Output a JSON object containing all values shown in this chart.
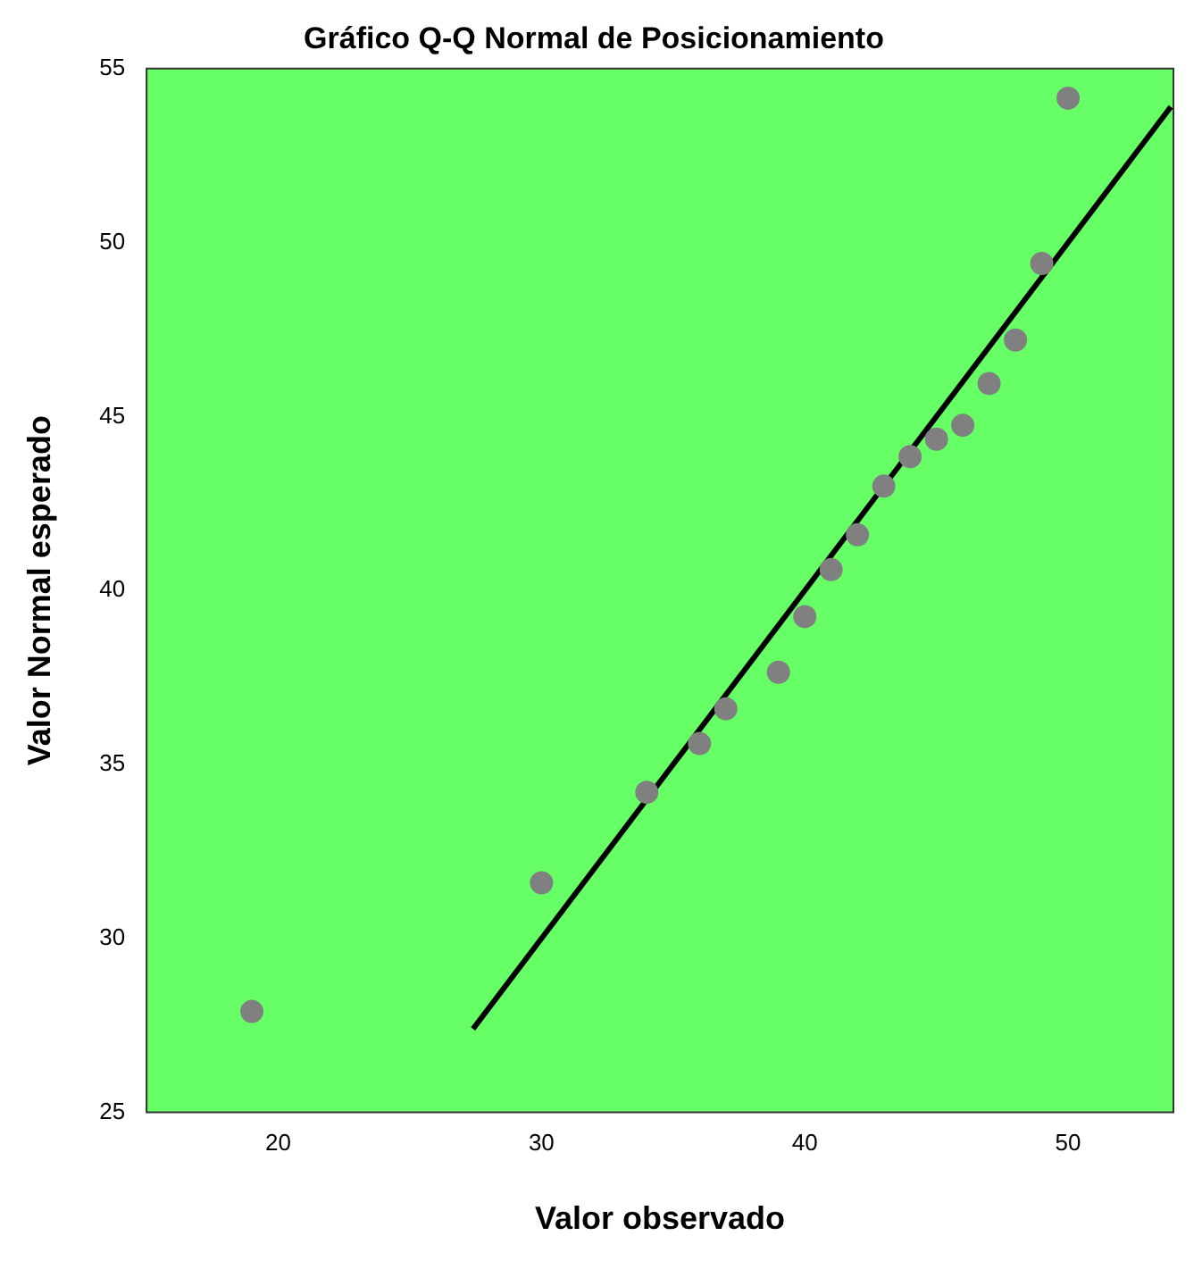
{
  "chart_data": {
    "type": "scatter",
    "title": "Gráfico Q-Q Normal de Posicionamiento",
    "xlabel": "Valor observado",
    "ylabel": "Valor Normal esperado",
    "xlim": [
      15,
      54
    ],
    "xticks": [
      20,
      30,
      40,
      50
    ],
    "ylim": [
      25,
      55
    ],
    "yticks": [
      25,
      30,
      35,
      40,
      45,
      50,
      55
    ],
    "grid": false,
    "legend": false,
    "series": [
      {
        "color": "#808080",
        "marker": "circle",
        "x": [
          19,
          30,
          34,
          36,
          37,
          39,
          40,
          41,
          42,
          43,
          44,
          45,
          46,
          47,
          48,
          49,
          50
        ],
        "values": [
          27.9,
          31.6,
          34.2,
          35.6,
          36.6,
          37.65,
          39.25,
          40.6,
          41.6,
          43.0,
          43.85,
          44.35,
          44.75,
          45.95,
          47.2,
          49.4,
          54.15
        ]
      },
      {
        "type": "line",
        "color": "#000000",
        "marker": "none",
        "x": [
          27.4,
          53.9
        ],
        "values": [
          27.4,
          53.9
        ]
      }
    ]
  }
}
